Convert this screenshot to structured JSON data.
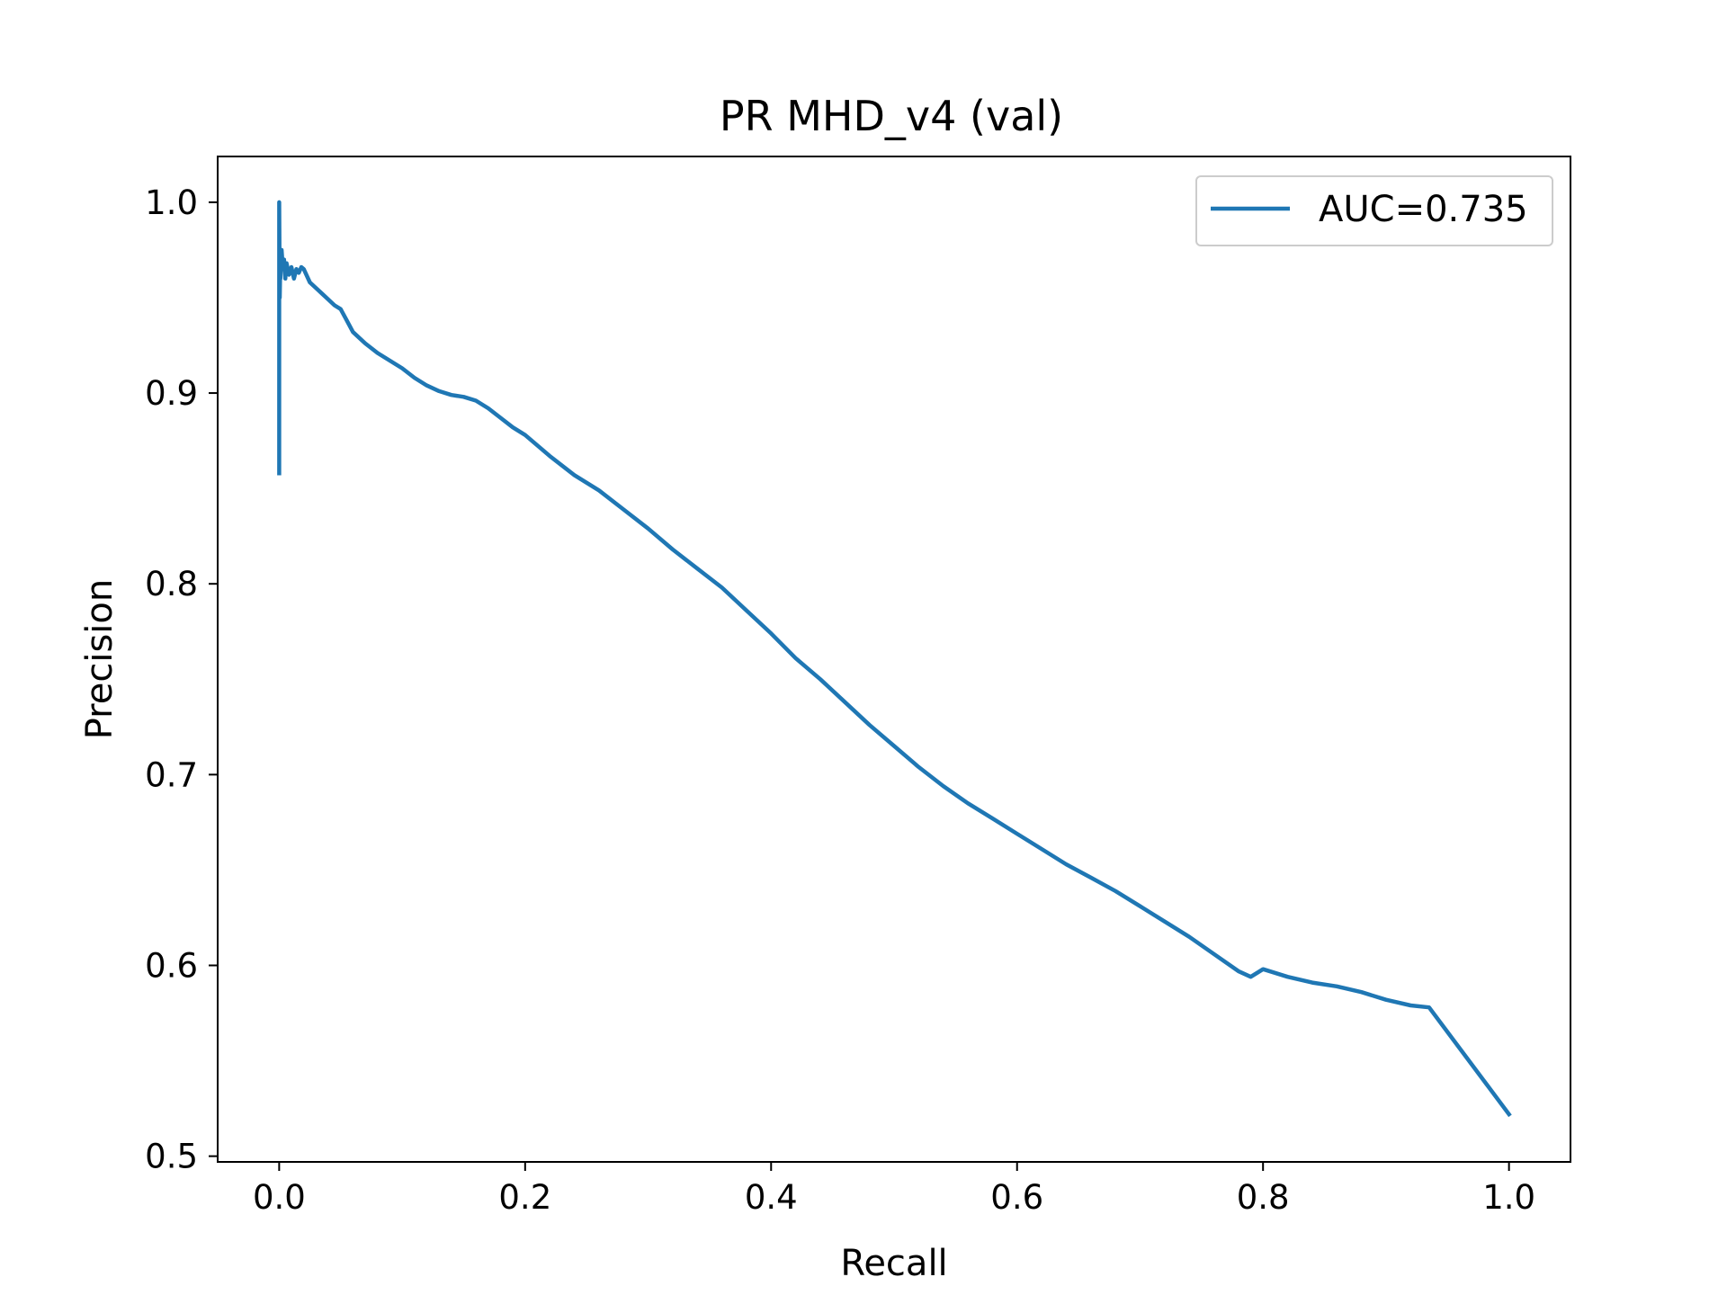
{
  "chart_data": {
    "type": "line",
    "title": "PR MHD_v4 (val)",
    "xlabel": "Recall",
    "ylabel": "Precision",
    "xlim": [
      -0.05,
      1.05
    ],
    "ylim": [
      0.497,
      1.024
    ],
    "xticks": [
      0.0,
      0.2,
      0.4,
      0.6,
      0.8,
      1.0
    ],
    "xtick_labels": [
      "0.0",
      "0.2",
      "0.4",
      "0.6",
      "0.8",
      "1.0"
    ],
    "yticks": [
      0.5,
      0.6,
      0.7,
      0.8,
      0.9,
      1.0
    ],
    "ytick_labels": [
      "0.5",
      "0.6",
      "0.7",
      "0.8",
      "0.9",
      "1.0"
    ],
    "grid": false,
    "legend_position": "top-right",
    "series": [
      {
        "name": "AUC=0.735",
        "color": "#1f77b4",
        "x": [
          0.0,
          0.0,
          0.0005,
          0.001,
          0.001,
          0.002,
          0.003,
          0.004,
          0.005,
          0.006,
          0.008,
          0.01,
          0.012,
          0.014,
          0.016,
          0.018,
          0.02,
          0.025,
          0.03,
          0.035,
          0.04,
          0.045,
          0.05,
          0.055,
          0.06,
          0.07,
          0.08,
          0.09,
          0.1,
          0.11,
          0.12,
          0.13,
          0.14,
          0.15,
          0.16,
          0.17,
          0.18,
          0.19,
          0.2,
          0.22,
          0.24,
          0.26,
          0.28,
          0.3,
          0.32,
          0.34,
          0.36,
          0.38,
          0.4,
          0.42,
          0.44,
          0.46,
          0.48,
          0.5,
          0.52,
          0.54,
          0.56,
          0.58,
          0.6,
          0.62,
          0.64,
          0.66,
          0.68,
          0.7,
          0.72,
          0.74,
          0.76,
          0.78,
          0.79,
          0.8,
          0.82,
          0.84,
          0.86,
          0.88,
          0.9,
          0.92,
          0.935,
          1.0
        ],
        "y": [
          0.858,
          1.0,
          0.95,
          0.97,
          0.96,
          0.975,
          0.965,
          0.97,
          0.96,
          0.968,
          0.962,
          0.966,
          0.96,
          0.965,
          0.963,
          0.966,
          0.965,
          0.958,
          0.955,
          0.952,
          0.949,
          0.946,
          0.944,
          0.938,
          0.932,
          0.926,
          0.921,
          0.917,
          0.913,
          0.908,
          0.904,
          0.901,
          0.899,
          0.898,
          0.896,
          0.892,
          0.887,
          0.882,
          0.878,
          0.867,
          0.857,
          0.849,
          0.839,
          0.829,
          0.818,
          0.808,
          0.798,
          0.786,
          0.774,
          0.761,
          0.75,
          0.738,
          0.726,
          0.715,
          0.704,
          0.694,
          0.685,
          0.677,
          0.669,
          0.661,
          0.653,
          0.646,
          0.639,
          0.631,
          0.623,
          0.615,
          0.606,
          0.597,
          0.594,
          0.598,
          0.594,
          0.591,
          0.589,
          0.586,
          0.582,
          0.579,
          0.578,
          0.522
        ]
      }
    ]
  }
}
